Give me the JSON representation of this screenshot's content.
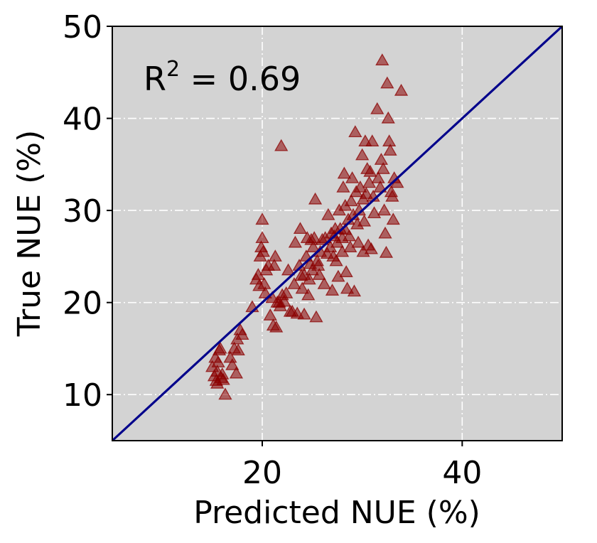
{
  "chart_data": {
    "type": "scatter",
    "xlabel": "Predicted NUE (%)",
    "ylabel": "True NUE (%)",
    "xlim": [
      5,
      50
    ],
    "ylim": [
      5,
      50
    ],
    "x_ticks": [
      20,
      40
    ],
    "y_ticks": [
      10,
      20,
      30,
      40,
      50
    ],
    "grid": true,
    "background_color": "#d3d3d3",
    "marker": "triangle",
    "marker_color": "#8b0000",
    "identity_line": {
      "from": [
        5,
        5
      ],
      "to": [
        50,
        50
      ],
      "color": "#00008b"
    },
    "annotation": {
      "prefix": "R",
      "superscript": "2",
      "suffix": " = 0.69"
    },
    "points": [
      [
        15.0,
        13.0
      ],
      [
        15.2,
        12.0
      ],
      [
        15.4,
        11.5
      ],
      [
        15.5,
        12.5
      ],
      [
        15.6,
        13.5
      ],
      [
        15.7,
        14.8
      ],
      [
        15.8,
        15.0
      ],
      [
        15.9,
        11.8
      ],
      [
        16.0,
        12.2
      ],
      [
        16.1,
        11.6
      ],
      [
        16.3,
        10.0
      ],
      [
        15.3,
        14.0
      ],
      [
        15.5,
        11.2
      ],
      [
        16.8,
        14.0
      ],
      [
        17.0,
        13.2
      ],
      [
        17.2,
        15.0
      ],
      [
        17.5,
        16.0
      ],
      [
        17.6,
        14.8
      ],
      [
        17.8,
        17.0
      ],
      [
        18.0,
        16.5
      ],
      [
        17.4,
        12.3
      ],
      [
        19.0,
        19.5
      ],
      [
        19.4,
        22.5
      ],
      [
        19.6,
        23.0
      ],
      [
        19.7,
        21.8
      ],
      [
        19.8,
        25.0
      ],
      [
        19.9,
        26.0
      ],
      [
        20.0,
        27.0
      ],
      [
        20.0,
        29.0
      ],
      [
        20.1,
        25.5
      ],
      [
        20.2,
        22.0
      ],
      [
        20.3,
        21.0
      ],
      [
        20.4,
        23.5
      ],
      [
        20.6,
        24.0
      ],
      [
        20.8,
        18.6
      ],
      [
        21.0,
        20.5
      ],
      [
        21.1,
        17.5
      ],
      [
        21.2,
        24.0
      ],
      [
        21.3,
        25.0
      ],
      [
        21.4,
        17.3
      ],
      [
        21.7,
        20.0
      ],
      [
        21.8,
        19.6
      ],
      [
        21.9,
        37.0
      ],
      [
        22.0,
        20.8
      ],
      [
        22.4,
        21.0
      ],
      [
        22.6,
        23.5
      ],
      [
        22.8,
        19.0
      ],
      [
        23.0,
        19.0
      ],
      [
        23.2,
        22.0
      ],
      [
        23.3,
        26.5
      ],
      [
        23.5,
        18.8
      ],
      [
        23.7,
        24.0
      ],
      [
        23.8,
        28.0
      ],
      [
        24.0,
        21.5
      ],
      [
        24.2,
        23.0
      ],
      [
        24.2,
        18.7
      ],
      [
        24.4,
        25.0
      ],
      [
        24.5,
        27.0
      ],
      [
        24.6,
        20.8
      ],
      [
        24.7,
        22.5
      ],
      [
        24.8,
        24.2
      ],
      [
        25.0,
        23.5
      ],
      [
        25.1,
        26.0
      ],
      [
        25.2,
        27.0
      ],
      [
        25.3,
        31.2
      ],
      [
        25.4,
        18.4
      ],
      [
        25.5,
        24.5
      ],
      [
        25.6,
        24.0
      ],
      [
        25.7,
        23.0
      ],
      [
        25.8,
        25.5
      ],
      [
        26.0,
        26.8
      ],
      [
        26.2,
        22.0
      ],
      [
        26.3,
        27.0
      ],
      [
        26.5,
        25.3
      ],
      [
        26.6,
        29.5
      ],
      [
        26.8,
        26.0
      ],
      [
        27.0,
        21.3
      ],
      [
        27.1,
        25.0
      ],
      [
        27.2,
        27.2
      ],
      [
        27.3,
        28.0
      ],
      [
        27.4,
        24.5
      ],
      [
        27.5,
        26.5
      ],
      [
        27.6,
        22.8
      ],
      [
        27.7,
        30.0
      ],
      [
        27.8,
        28.0
      ],
      [
        28.0,
        27.0
      ],
      [
        28.0,
        25.5
      ],
      [
        28.1,
        32.5
      ],
      [
        28.2,
        34.0
      ],
      [
        28.3,
        30.5
      ],
      [
        28.4,
        23.3
      ],
      [
        28.5,
        21.5
      ],
      [
        28.6,
        29.0
      ],
      [
        28.7,
        27.2
      ],
      [
        28.8,
        26.0
      ],
      [
        28.9,
        31.0
      ],
      [
        29.0,
        33.5
      ],
      [
        29.1,
        29.5
      ],
      [
        29.2,
        21.2
      ],
      [
        29.3,
        38.5
      ],
      [
        29.4,
        32.0
      ],
      [
        29.5,
        28.5
      ],
      [
        29.6,
        26.5
      ],
      [
        29.7,
        30.0
      ],
      [
        29.8,
        32.5
      ],
      [
        30.0,
        36.0
      ],
      [
        30.1,
        25.5
      ],
      [
        30.2,
        28.8
      ],
      [
        30.3,
        37.5
      ],
      [
        30.4,
        31.8
      ],
      [
        30.5,
        34.5
      ],
      [
        30.6,
        26.2
      ],
      [
        30.7,
        33.0
      ],
      [
        30.8,
        34.2
      ],
      [
        30.9,
        25.8
      ],
      [
        31.0,
        37.5
      ],
      [
        31.1,
        31.5
      ],
      [
        31.2,
        29.7
      ],
      [
        31.5,
        41.0
      ],
      [
        31.6,
        33.5
      ],
      [
        31.8,
        32.5
      ],
      [
        31.9,
        35.5
      ],
      [
        32.0,
        46.3
      ],
      [
        32.1,
        34.5
      ],
      [
        32.2,
        30.0
      ],
      [
        32.3,
        27.5
      ],
      [
        32.4,
        25.4
      ],
      [
        32.5,
        43.8
      ],
      [
        32.6,
        40.0
      ],
      [
        32.7,
        37.5
      ],
      [
        32.8,
        36.5
      ],
      [
        32.9,
        32.0
      ],
      [
        33.0,
        31.5
      ],
      [
        33.1,
        29.0
      ],
      [
        33.2,
        33.5
      ],
      [
        33.5,
        33.0
      ],
      [
        33.9,
        43.0
      ],
      [
        26.9,
        27.5
      ],
      [
        24.9,
        26.8
      ],
      [
        22.2,
        20.1
      ],
      [
        23.9,
        22.9
      ],
      [
        28.3,
        27.9
      ],
      [
        30.1,
        31.2
      ],
      [
        21.5,
        20.0
      ]
    ]
  }
}
